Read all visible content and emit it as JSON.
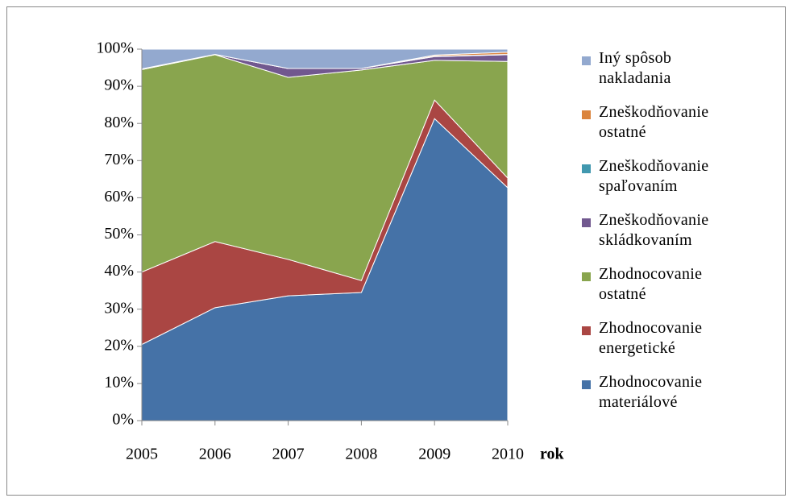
{
  "chart_data": {
    "type": "stacked_area_100",
    "x_label": "rok",
    "categories": [
      "2005",
      "2006",
      "2007",
      "2008",
      "2009",
      "2010"
    ],
    "ylim": [
      0,
      100
    ],
    "yticks": [
      {
        "value": 0,
        "label": "0%"
      },
      {
        "value": 10,
        "label": "10%"
      },
      {
        "value": 20,
        "label": "20%"
      },
      {
        "value": 30,
        "label": "30%"
      },
      {
        "value": 40,
        "label": "40%"
      },
      {
        "value": 50,
        "label": "50%"
      },
      {
        "value": 60,
        "label": "60%"
      },
      {
        "value": 70,
        "label": "70%"
      },
      {
        "value": 80,
        "label": "80%"
      },
      {
        "value": 90,
        "label": "90%"
      },
      {
        "value": 100,
        "label": "100%"
      }
    ],
    "legend_position": "right",
    "series": [
      {
        "name": "Zhodnocovanie materiálové",
        "color": "#4572A7",
        "values": [
          20.5,
          30.4,
          33.6,
          34.5,
          81.3,
          62.7
        ]
      },
      {
        "name": "Zhodnocovanie energetické",
        "color": "#AA4643",
        "values": [
          19.5,
          17.8,
          9.8,
          3.2,
          5.0,
          2.6
        ]
      },
      {
        "name": "Zhodnocovanie ostatné",
        "color": "#89A54E",
        "values": [
          54.5,
          50.3,
          49.0,
          56.7,
          10.7,
          31.4
        ]
      },
      {
        "name": "Zneškodňovanie skládkovaním",
        "color": "#71588F",
        "values": [
          0.2,
          0.1,
          2.4,
          0.4,
          1.0,
          1.8
        ]
      },
      {
        "name": "Zneškodňovanie spaľovaním",
        "color": "#4198AF",
        "values": [
          0,
          0,
          0,
          0,
          0.1,
          0.1
        ]
      },
      {
        "name": "Zneškodňovanie ostatné",
        "color": "#DB843D",
        "values": [
          0,
          0,
          0,
          0,
          0.3,
          0.6
        ]
      },
      {
        "name": "Iný spôsob nakladania",
        "color": "#93A9CF",
        "values": [
          5.3,
          1.4,
          5.2,
          5.2,
          1.6,
          0.8
        ]
      }
    ]
  }
}
